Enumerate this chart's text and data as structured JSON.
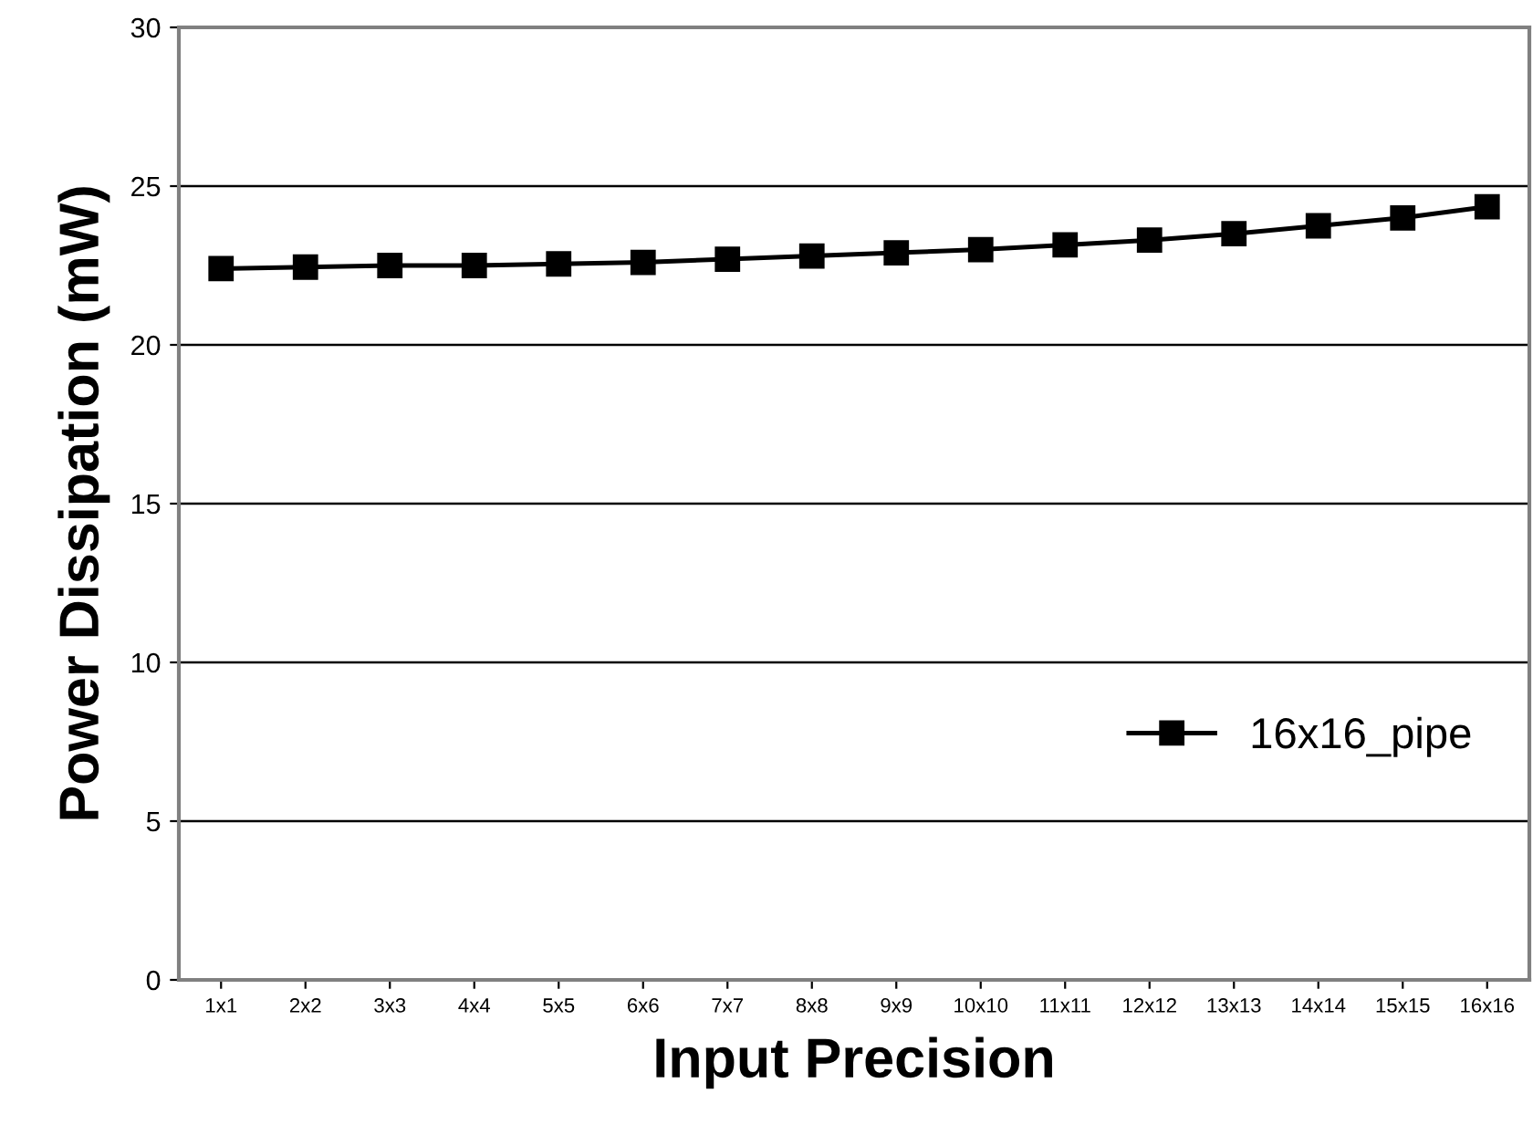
{
  "chart_data": {
    "type": "line",
    "xlabel": "Input Precision",
    "ylabel": "Power Dissipation (mW)",
    "categories": [
      "1x1",
      "2x2",
      "3x3",
      "4x4",
      "5x5",
      "6x6",
      "7x7",
      "8x8",
      "9x9",
      "10x10",
      "11x11",
      "12x12",
      "13x13",
      "14x14",
      "15x15",
      "16x16"
    ],
    "series": [
      {
        "name": "16x16_pipe",
        "color": "#000000",
        "values": [
          22.4,
          22.45,
          22.5,
          22.5,
          22.55,
          22.6,
          22.7,
          22.8,
          22.9,
          23.0,
          23.15,
          23.3,
          23.5,
          23.75,
          24.0,
          24.35
        ]
      }
    ],
    "ylim": [
      0,
      30
    ],
    "yticks": [
      0,
      5,
      10,
      15,
      20,
      25,
      30
    ],
    "grid": "y",
    "legend": "right",
    "marker": "square",
    "line_style": "solid"
  }
}
